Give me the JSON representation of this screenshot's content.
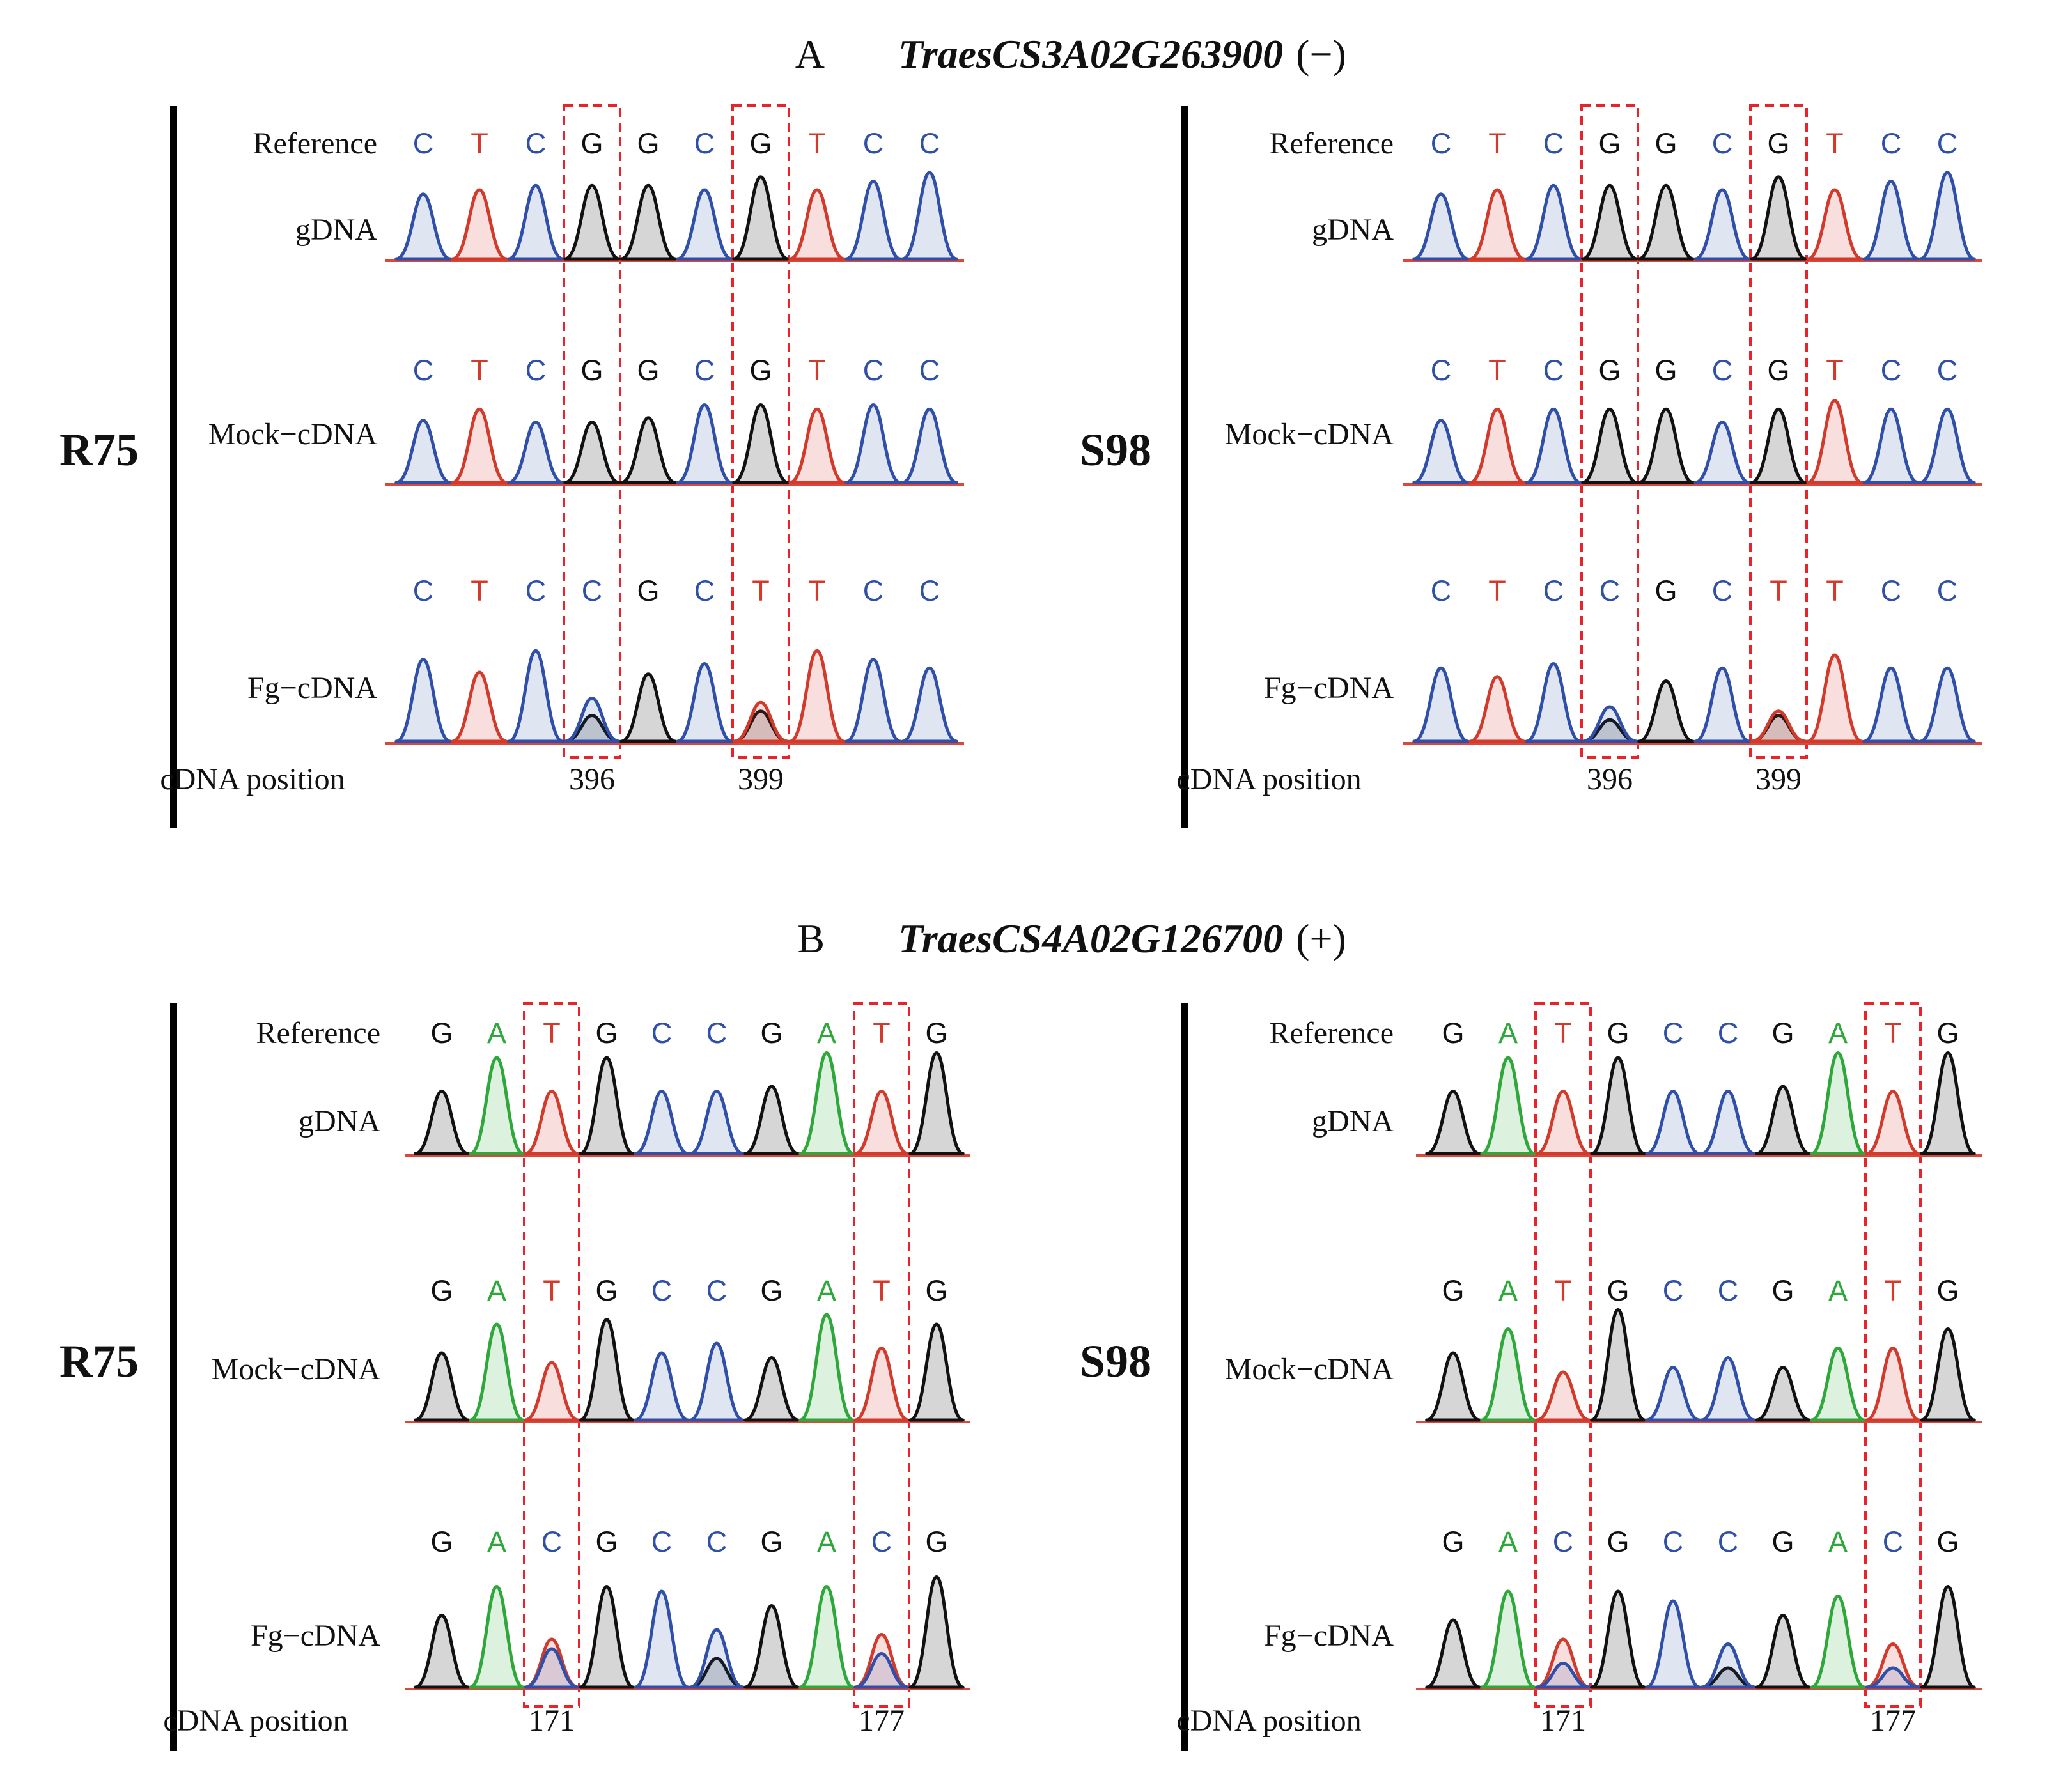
{
  "colors": {
    "A": "#2ea83a",
    "C": "#2f4fa8",
    "G": "#111111",
    "T": "#d23a2c",
    "highlight": "#e8232a",
    "baseline": "#d9473d"
  },
  "sections": [
    {
      "letter": "A",
      "gene": "TraesCS3A02G263900",
      "strand": "(−)",
      "reference": [
        "C",
        "T",
        "C",
        "G",
        "G",
        "C",
        "G",
        "T",
        "C",
        "C"
      ],
      "highlight_index": [
        3,
        6
      ],
      "panels": [
        {
          "sample": "R75",
          "rows": [
            {
              "label": "Reference",
              "bases": [
                "C",
                "T",
                "C",
                "G",
                "G",
                "C",
                "G",
                "T",
                "C",
                "C"
              ]
            },
            {
              "label": "gDNA",
              "peaks": [
                [
                  "C",
                  0.75
                ],
                [
                  "T",
                  0.8
                ],
                [
                  "C",
                  0.85
                ],
                [
                  "G",
                  0.85
                ],
                [
                  "G",
                  0.85
                ],
                [
                  "C",
                  0.8
                ],
                [
                  "G",
                  0.95
                ],
                [
                  "T",
                  0.8
                ],
                [
                  "C",
                  0.9
                ],
                [
                  "C",
                  1.0
                ]
              ]
            },
            {
              "label": "Mock−cDNA",
              "bases": [
                "C",
                "T",
                "C",
                "G",
                "G",
                "C",
                "G",
                "T",
                "C",
                "C"
              ],
              "peaks": [
                [
                  "C",
                  0.72
                ],
                [
                  "T",
                  0.85
                ],
                [
                  "C",
                  0.7
                ],
                [
                  "G",
                  0.7
                ],
                [
                  "G",
                  0.75
                ],
                [
                  "C",
                  0.9
                ],
                [
                  "G",
                  0.9
                ],
                [
                  "T",
                  0.85
                ],
                [
                  "C",
                  0.9
                ],
                [
                  "C",
                  0.85
                ]
              ]
            },
            {
              "label": "Fg−cDNA",
              "bases": [
                "C",
                "T",
                "C",
                "C",
                "G",
                "C",
                "T",
                "T",
                "C",
                "C"
              ],
              "peaks": [
                [
                  "C",
                  0.95
                ],
                [
                  "T",
                  0.8
                ],
                [
                  "C",
                  1.05
                ],
                [
                  "C",
                  0.5,
                  "G",
                  0.3
                ],
                [
                  "G",
                  0.78
                ],
                [
                  "C",
                  0.9
                ],
                [
                  "T",
                  0.45,
                  "G",
                  0.35
                ],
                [
                  "T",
                  1.05
                ],
                [
                  "C",
                  0.95
                ],
                [
                  "C",
                  0.85
                ]
              ]
            }
          ],
          "position_label": "cDNA position",
          "positions": [
            "396",
            "399"
          ]
        },
        {
          "sample": "S98",
          "rows": [
            {
              "label": "Reference",
              "bases": [
                "C",
                "T",
                "C",
                "G",
                "G",
                "C",
                "G",
                "T",
                "C",
                "C"
              ]
            },
            {
              "label": "gDNA",
              "peaks": [
                [
                  "C",
                  0.75
                ],
                [
                  "T",
                  0.8
                ],
                [
                  "C",
                  0.85
                ],
                [
                  "G",
                  0.85
                ],
                [
                  "G",
                  0.85
                ],
                [
                  "C",
                  0.8
                ],
                [
                  "G",
                  0.95
                ],
                [
                  "T",
                  0.8
                ],
                [
                  "C",
                  0.9
                ],
                [
                  "C",
                  1.0
                ]
              ]
            },
            {
              "label": "Mock−cDNA",
              "bases": [
                "C",
                "T",
                "C",
                "G",
                "G",
                "C",
                "G",
                "T",
                "C",
                "C"
              ],
              "peaks": [
                [
                  "C",
                  0.72
                ],
                [
                  "T",
                  0.85
                ],
                [
                  "C",
                  0.85
                ],
                [
                  "G",
                  0.85
                ],
                [
                  "G",
                  0.85
                ],
                [
                  "C",
                  0.7
                ],
                [
                  "G",
                  0.85
                ],
                [
                  "T",
                  0.95
                ],
                [
                  "C",
                  0.85
                ],
                [
                  "C",
                  0.85
                ]
              ]
            },
            {
              "label": "Fg−cDNA",
              "bases": [
                "C",
                "T",
                "C",
                "C",
                "G",
                "C",
                "T",
                "T",
                "C",
                "C"
              ],
              "peaks": [
                [
                  "C",
                  0.85
                ],
                [
                  "T",
                  0.75
                ],
                [
                  "C",
                  0.9
                ],
                [
                  "C",
                  0.4,
                  "G",
                  0.25
                ],
                [
                  "G",
                  0.7
                ],
                [
                  "C",
                  0.85
                ],
                [
                  "T",
                  0.35,
                  "G",
                  0.3
                ],
                [
                  "T",
                  1.0
                ],
                [
                  "C",
                  0.85
                ],
                [
                  "C",
                  0.85
                ]
              ]
            }
          ],
          "position_label": "cDNA position",
          "positions": [
            "396",
            "399"
          ]
        }
      ]
    },
    {
      "letter": "B",
      "gene": "TraesCS4A02G126700",
      "strand": "(+)",
      "reference": [
        "G",
        "A",
        "T",
        "G",
        "C",
        "C",
        "G",
        "A",
        "T",
        "G"
      ],
      "highlight_index": [
        2,
        8
      ],
      "panels": [
        {
          "sample": "R75",
          "rows": [
            {
              "label": "Reference",
              "bases": [
                "G",
                "A",
                "T",
                "G",
                "C",
                "C",
                "G",
                "A",
                "T",
                "G"
              ]
            },
            {
              "label": "gDNA",
              "peaks": [
                [
                  "G",
                  0.65
                ],
                [
                  "A",
                  1.0
                ],
                [
                  "T",
                  0.65
                ],
                [
                  "G",
                  1.0
                ],
                [
                  "C",
                  0.65
                ],
                [
                  "C",
                  0.65
                ],
                [
                  "G",
                  0.7
                ],
                [
                  "A",
                  1.05
                ],
                [
                  "T",
                  0.65
                ],
                [
                  "G",
                  1.05
                ]
              ]
            },
            {
              "label": "Mock−cDNA",
              "bases": [
                "G",
                "A",
                "T",
                "G",
                "C",
                "C",
                "G",
                "A",
                "T",
                "G"
              ],
              "peaks": [
                [
                  "G",
                  0.7
                ],
                [
                  "A",
                  1.0
                ],
                [
                  "T",
                  0.6
                ],
                [
                  "G",
                  1.05
                ],
                [
                  "C",
                  0.7
                ],
                [
                  "C",
                  0.8
                ],
                [
                  "G",
                  0.65
                ],
                [
                  "A",
                  1.1
                ],
                [
                  "T",
                  0.75
                ],
                [
                  "G",
                  1.0
                ]
              ]
            },
            {
              "label": "Fg−cDNA",
              "bases": [
                "G",
                "A",
                "C",
                "G",
                "C",
                "C",
                "G",
                "A",
                "C",
                "G"
              ],
              "peaks": [
                [
                  "G",
                  0.75
                ],
                [
                  "A",
                  1.05
                ],
                [
                  "C",
                  0.4,
                  "T",
                  0.5
                ],
                [
                  "G",
                  1.05
                ],
                [
                  "C",
                  1.0
                ],
                [
                  "C",
                  0.6,
                  "G",
                  0.3
                ],
                [
                  "G",
                  0.85
                ],
                [
                  "A",
                  1.05
                ],
                [
                  "C",
                  0.35,
                  "T",
                  0.55
                ],
                [
                  "G",
                  1.15
                ]
              ]
            }
          ],
          "position_label": "cDNA position",
          "positions": [
            "171",
            "177"
          ]
        },
        {
          "sample": "S98",
          "rows": [
            {
              "label": "Reference",
              "bases": [
                "G",
                "A",
                "T",
                "G",
                "C",
                "C",
                "G",
                "A",
                "T",
                "G"
              ]
            },
            {
              "label": "gDNA",
              "peaks": [
                [
                  "G",
                  0.65
                ],
                [
                  "A",
                  1.0
                ],
                [
                  "T",
                  0.65
                ],
                [
                  "G",
                  1.0
                ],
                [
                  "C",
                  0.65
                ],
                [
                  "C",
                  0.65
                ],
                [
                  "G",
                  0.7
                ],
                [
                  "A",
                  1.05
                ],
                [
                  "T",
                  0.65
                ],
                [
                  "G",
                  1.05
                ]
              ]
            },
            {
              "label": "Mock−cDNA",
              "bases": [
                "G",
                "A",
                "T",
                "G",
                "C",
                "C",
                "G",
                "A",
                "T",
                "G"
              ],
              "peaks": [
                [
                  "G",
                  0.7
                ],
                [
                  "A",
                  0.95
                ],
                [
                  "T",
                  0.5
                ],
                [
                  "G",
                  1.15
                ],
                [
                  "C",
                  0.55
                ],
                [
                  "C",
                  0.65
                ],
                [
                  "G",
                  0.55
                ],
                [
                  "A",
                  0.75
                ],
                [
                  "T",
                  0.75
                ],
                [
                  "G",
                  0.95
                ]
              ]
            },
            {
              "label": "Fg−cDNA",
              "bases": [
                "G",
                "A",
                "C",
                "G",
                "C",
                "C",
                "G",
                "A",
                "C",
                "G"
              ],
              "peaks": [
                [
                  "G",
                  0.7
                ],
                [
                  "A",
                  1.0
                ],
                [
                  "C",
                  0.25,
                  "T",
                  0.5
                ],
                [
                  "G",
                  1.0
                ],
                [
                  "C",
                  0.9
                ],
                [
                  "C",
                  0.45,
                  "G",
                  0.2
                ],
                [
                  "G",
                  0.75
                ],
                [
                  "A",
                  0.95
                ],
                [
                  "C",
                  0.2,
                  "T",
                  0.45
                ],
                [
                  "G",
                  1.05
                ]
              ]
            }
          ],
          "position_label": "cDNA position",
          "positions": [
            "171",
            "177"
          ]
        }
      ]
    }
  ]
}
